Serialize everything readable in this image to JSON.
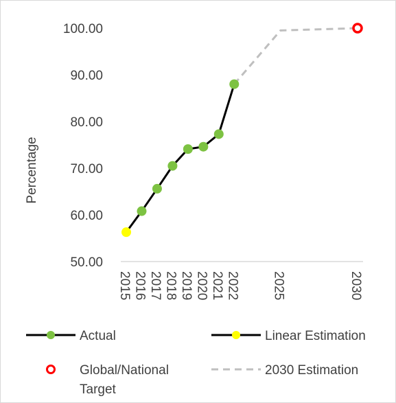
{
  "chart_data": {
    "type": "line",
    "ylabel": "Percentage",
    "xlabel": "",
    "ylim": [
      50,
      100
    ],
    "y_ticks": [
      "50.00",
      "60.00",
      "70.00",
      "80.00",
      "90.00",
      "100.00"
    ],
    "x_ticks": [
      "2015",
      "2016",
      "2017",
      "2018",
      "2019",
      "2020",
      "2021",
      "2022",
      "2025",
      "2030"
    ],
    "grid": false,
    "legend_position": "bottom",
    "series": [
      {
        "name": "Actual",
        "color": "#7dc242",
        "line_color": "#000000",
        "x": [
          2016,
          2017,
          2018,
          2019,
          2020,
          2021,
          2022
        ],
        "y": [
          60.8,
          65.6,
          70.5,
          74.1,
          74.6,
          77.3,
          88.0
        ]
      },
      {
        "name": "Linear Estimation",
        "color": "#ffff00",
        "line_color": "#000000",
        "x": [
          2015
        ],
        "y": [
          56.3
        ]
      },
      {
        "name": "Global/National Target",
        "color": "#ff0000",
        "x": [
          2030
        ],
        "y": [
          100
        ]
      },
      {
        "name": "2030 Estimation",
        "color": "#bfbfbf",
        "x": [
          2022,
          2025,
          2030
        ],
        "y": [
          88.0,
          99.5,
          100
        ]
      }
    ],
    "legend": [
      {
        "key": "actual",
        "label": "Actual"
      },
      {
        "key": "linear",
        "label": "Linear Estimation"
      },
      {
        "key": "target",
        "label": "Global/National"
      },
      {
        "key": "estimation",
        "label": "2030 Estimation"
      }
    ],
    "legend_target_line2": "Target"
  }
}
